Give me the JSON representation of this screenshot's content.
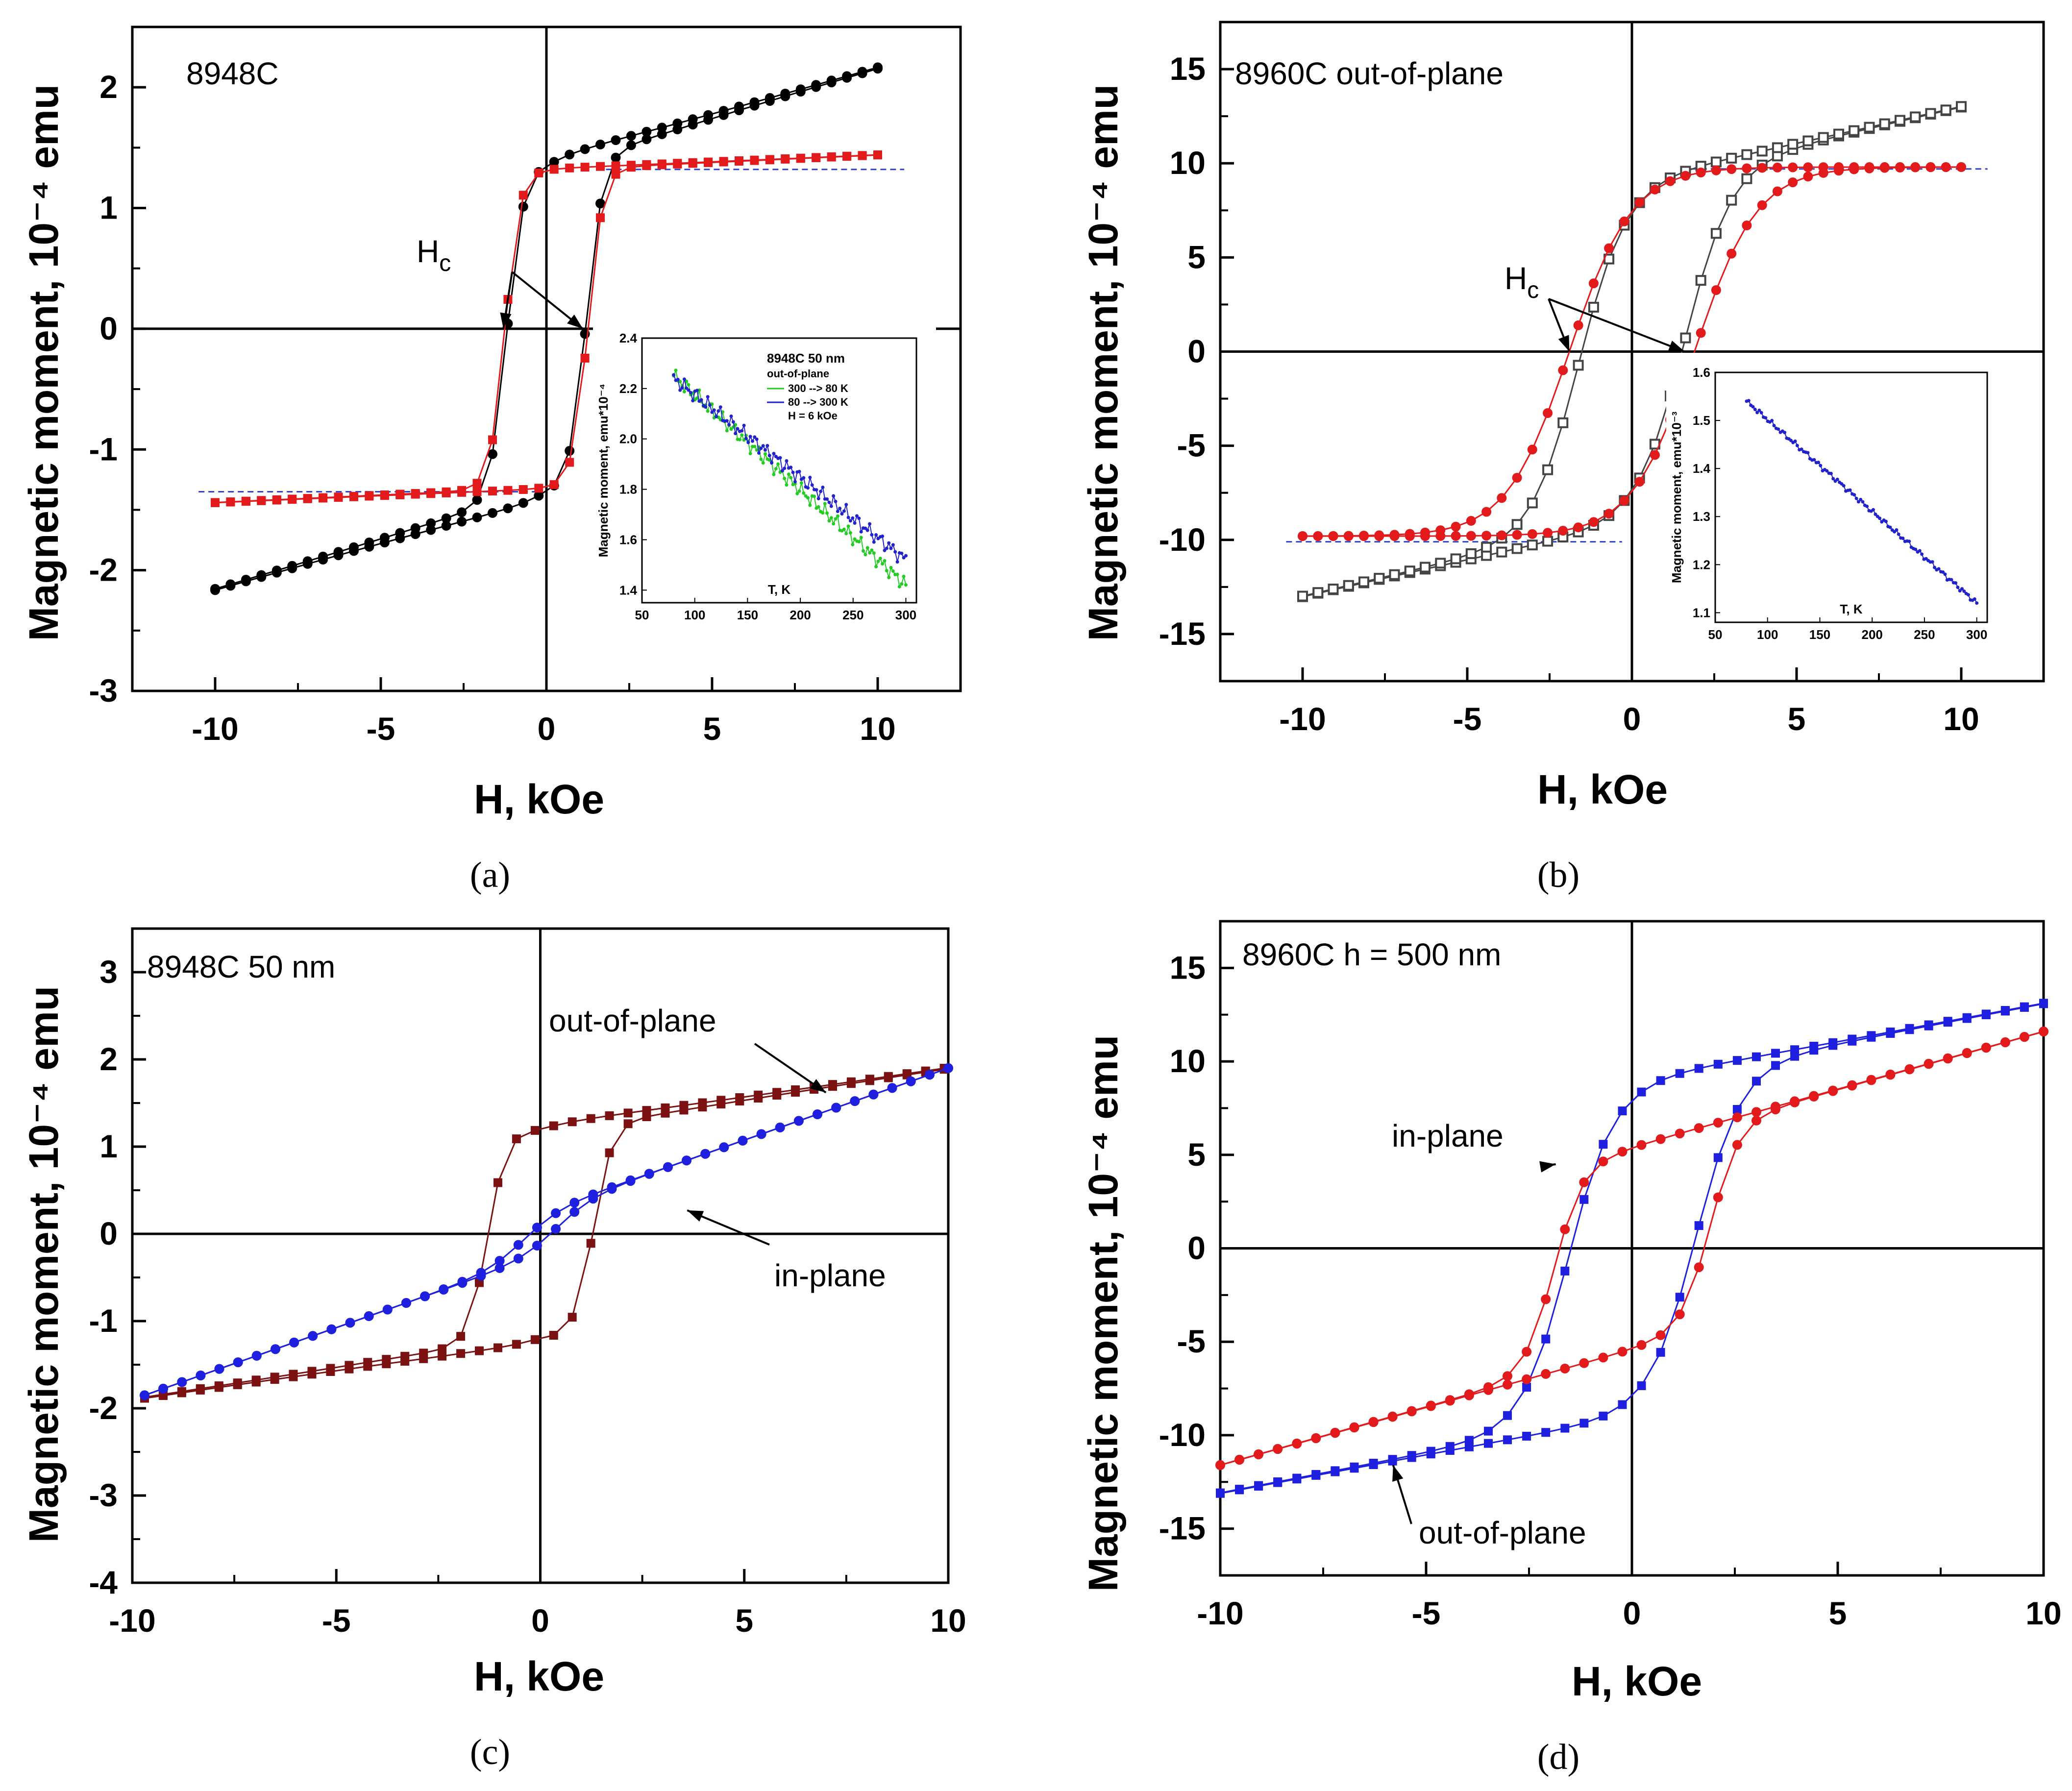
{
  "figure": {
    "captions": [
      "(a)",
      "(b)",
      "(c)",
      "(d)"
    ]
  },
  "chart_data": [
    {
      "id": "a",
      "type": "line",
      "caption": "(a)",
      "sample_label": "8948C",
      "xlabel": "H, kOe",
      "ylabel": "Magnetic moment, 10⁻⁴ emu",
      "xlim": [
        -12.5,
        12.5
      ],
      "ylim": [
        -3,
        2.5
      ],
      "xticks": [
        -10,
        -5,
        0,
        5,
        10
      ],
      "yticks": [
        -3,
        -2,
        -1,
        0,
        1,
        2
      ],
      "annotation": "Hc",
      "coercive_points": [
        [
          -1.3,
          0
        ],
        [
          1.1,
          0
        ]
      ],
      "saturation_guides": [
        1.32,
        -1.35
      ],
      "series": [
        {
          "name": "black loop",
          "color": "#000000",
          "marker": "circle",
          "loop": {
            "ms": 1.36,
            "hc": 1.2,
            "w": 0.5,
            "chi": 0.08,
            "curv": 0.45,
            "xmin": -10,
            "xmax": 10
          }
        },
        {
          "name": "red loop",
          "color": "#e31a1c",
          "marker": "square",
          "loop": {
            "ms": 1.32,
            "hc": 1.25,
            "w": 0.45,
            "chi": 0.012,
            "curv": 0.06,
            "xmin": -10,
            "xmax": 10
          }
        }
      ],
      "inset": {
        "title": "8948C 50 nm",
        "subtitle": "out-of-plane",
        "legend": [
          "300 --> 80 K",
          "80 --> 300 K",
          "H = 6 kOe"
        ],
        "xlabel": "T, K",
        "ylabel": "Magnetic moment, emu*10⁻⁴",
        "xlim": [
          50,
          310
        ],
        "ylim": [
          1.35,
          2.4
        ],
        "xticks": [
          50,
          100,
          150,
          200,
          250,
          300
        ],
        "yticks": [
          1.4,
          1.6,
          1.8,
          2.0,
          2.2,
          2.4
        ],
        "series": [
          {
            "name": "300 --> 80 K",
            "color": "#22cc22",
            "T": [
              80,
              300
            ],
            "M": [
              2.25,
              1.42
            ]
          },
          {
            "name": "80 --> 300 K",
            "color": "#2222cc",
            "T": [
              80,
              300
            ],
            "M": [
              2.24,
              1.52
            ]
          }
        ]
      }
    },
    {
      "id": "b",
      "type": "line",
      "caption": "(b)",
      "sample_label": "8960C  out-of-plane",
      "xlabel": "H, kOe",
      "ylabel": "Magnetic moment, 10⁻⁴ emu",
      "xlim": [
        -12.5,
        12.5
      ],
      "ylim": [
        -17.5,
        17.5
      ],
      "xticks": [
        -10,
        -5,
        0,
        5,
        10
      ],
      "yticks": [
        -15,
        -10,
        -5,
        0,
        5,
        10,
        15
      ],
      "annotation": "Hc",
      "coercive_points": [
        [
          -1.9,
          0
        ],
        [
          1.6,
          0
        ]
      ],
      "saturation_guides": [
        9.7,
        -10.1
      ],
      "series": [
        {
          "name": "open squares",
          "color": "#444444",
          "marker": "open-square",
          "loop": {
            "ms": 9.0,
            "hc": 1.6,
            "w": 1.4,
            "chi": 0.4,
            "curv": 1.3,
            "xmin": -10,
            "xmax": 10
          }
        },
        {
          "name": "red circles",
          "color": "#e31a1c",
          "marker": "circle",
          "loop": {
            "ms": 9.8,
            "hc": 1.9,
            "w": 1.9,
            "chi": 0.0,
            "curv": 0.0,
            "xmin": -10,
            "xmax": 10
          }
        }
      ],
      "inset": {
        "title": "",
        "subtitle": "",
        "legend": [],
        "xlabel": "T, K",
        "ylabel": "Magnetic moment, emu*10⁻³",
        "xlim": [
          50,
          310
        ],
        "ylim": [
          1.08,
          1.6
        ],
        "xticks": [
          50,
          100,
          150,
          200,
          250,
          300
        ],
        "yticks": [
          1.1,
          1.2,
          1.3,
          1.4,
          1.5,
          1.6
        ],
        "series": [
          {
            "name": "M(T)",
            "color": "#2222cc",
            "T": [
              80,
              300
            ],
            "M": [
              1.54,
              1.12
            ]
          }
        ]
      }
    },
    {
      "id": "c",
      "type": "line",
      "caption": "(c)",
      "sample_label": "8948C  50 nm",
      "xlabel": "H, kOe",
      "ylabel": "Magnetic moment, 10⁻⁴ emu",
      "xlim": [
        -10,
        10
      ],
      "ylim": [
        -4,
        3.5
      ],
      "xticks": [
        -10,
        -5,
        0,
        5,
        10
      ],
      "yticks": [
        -4,
        -3,
        -2,
        -1,
        0,
        1,
        2,
        3
      ],
      "annotations": [
        "out-of-plane",
        "in-plane"
      ],
      "series": [
        {
          "name": "out-of-plane",
          "color": "#7b1111",
          "marker": "square",
          "loop": {
            "ms": 1.2,
            "hc": 1.3,
            "w": 0.45,
            "chi": 0.07,
            "curv": 0.45,
            "xmin": -9.7,
            "xmax": 9.9
          }
        },
        {
          "name": "in-plane",
          "color": "#1f1fe0",
          "marker": "circle",
          "loop": {
            "ms": 0.25,
            "hc": 0.4,
            "w": 0.9,
            "chi": 0.165,
            "curv": 0.0,
            "xmin": -9.7,
            "xmax": 10
          }
        }
      ]
    },
    {
      "id": "d",
      "type": "line",
      "caption": "(d)",
      "sample_label": "8960C h = 500 nm",
      "xlabel": "H, kOe",
      "ylabel": "Magnetic moment, 10⁻⁴ emu",
      "xlim": [
        -10,
        10
      ],
      "ylim": [
        -17.5,
        17.5
      ],
      "xticks": [
        -10,
        -5,
        0,
        5,
        10
      ],
      "yticks": [
        -15,
        -10,
        -5,
        0,
        5,
        10,
        15
      ],
      "annotations": [
        "in-plane",
        "out-of-plane"
      ],
      "series": [
        {
          "name": "out-of-plane",
          "color": "#1f1fe0",
          "marker": "square",
          "loop": {
            "ms": 8.9,
            "hc": 1.55,
            "w": 1.1,
            "chi": 0.42,
            "curv": 1.2,
            "xmin": -10,
            "xmax": 10
          }
        },
        {
          "name": "in-plane",
          "color": "#e31a1c",
          "marker": "circle",
          "loop": {
            "ms": 5.4,
            "hc": 1.9,
            "w": 0.7,
            "chi": 0.62,
            "curv": 0.3,
            "xmin": -10,
            "xmax": 10
          }
        }
      ]
    }
  ]
}
